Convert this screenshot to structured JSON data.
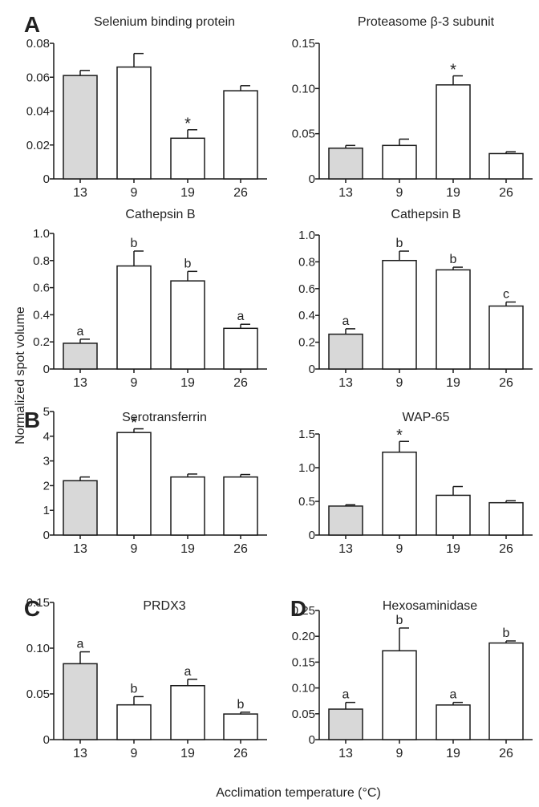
{
  "figure": {
    "ylabel": "Normalized spot volume",
    "xlabel": "Acclimation temperature (°C)"
  },
  "colors": {
    "control": "#d8d8d8",
    "bar": "#ffffff",
    "stroke": "#1a1a1a"
  },
  "chart_data": [
    {
      "type": "bar",
      "panel_letter": "A",
      "title": "Selenium binding protein",
      "categories": [
        "13",
        "9",
        "19",
        "26"
      ],
      "values": [
        0.061,
        0.066,
        0.024,
        0.052
      ],
      "errors": [
        0.003,
        0.008,
        0.005,
        0.003
      ],
      "sig": [
        "",
        "",
        "*",
        ""
      ],
      "ylim": [
        0,
        0.08
      ],
      "ticks": [
        0,
        0.02,
        0.04,
        0.06,
        0.08
      ],
      "tick_labels": [
        "0",
        "0.02",
        "0.04",
        "0.06",
        "0.08"
      ]
    },
    {
      "type": "bar",
      "panel_letter": "",
      "title": "Proteasome β-3 subunit",
      "categories": [
        "13",
        "9",
        "19",
        "26"
      ],
      "values": [
        0.034,
        0.037,
        0.104,
        0.028
      ],
      "errors": [
        0.003,
        0.007,
        0.01,
        0.002
      ],
      "sig": [
        "",
        "",
        "*",
        ""
      ],
      "ylim": [
        0,
        0.15
      ],
      "ticks": [
        0,
        0.05,
        0.1,
        0.15
      ],
      "tick_labels": [
        "0",
        "0.05",
        "0.10",
        "0.15"
      ]
    },
    {
      "type": "bar",
      "panel_letter": "",
      "title": "Cathepsin B",
      "categories": [
        "13",
        "9",
        "19",
        "26"
      ],
      "values": [
        0.19,
        0.76,
        0.65,
        0.3
      ],
      "errors": [
        0.03,
        0.11,
        0.07,
        0.03
      ],
      "sig": [
        "a",
        "b",
        "b",
        "a"
      ],
      "ylim": [
        0,
        1.0
      ],
      "ticks": [
        0,
        0.2,
        0.4,
        0.6,
        0.8,
        1.0
      ],
      "tick_labels": [
        "0",
        "0.2",
        "0.4",
        "0.6",
        "0.8",
        "1.0"
      ]
    },
    {
      "type": "bar",
      "panel_letter": "",
      "title": "Cathepsin B",
      "categories": [
        "13",
        "9",
        "19",
        "26"
      ],
      "values": [
        0.26,
        0.81,
        0.74,
        0.47
      ],
      "errors": [
        0.04,
        0.07,
        0.02,
        0.03
      ],
      "sig": [
        "a",
        "b",
        "b",
        "c"
      ],
      "ylim": [
        0,
        1.0
      ],
      "ticks": [
        0,
        0.2,
        0.4,
        0.6,
        0.8,
        1.0
      ],
      "tick_labels": [
        "0",
        "0.2",
        "0.4",
        "0.6",
        "0.8",
        "1.0"
      ]
    },
    {
      "type": "bar",
      "panel_letter": "B",
      "title": "Serotransferrin",
      "categories": [
        "13",
        "9",
        "19",
        "26"
      ],
      "values": [
        2.2,
        4.15,
        2.35,
        2.35
      ],
      "errors": [
        0.15,
        0.15,
        0.12,
        0.1
      ],
      "sig": [
        "",
        "*",
        "",
        ""
      ],
      "ylim": [
        0,
        5
      ],
      "ticks": [
        0,
        1,
        2,
        3,
        4,
        5
      ],
      "tick_labels": [
        "0",
        "1",
        "2",
        "3",
        "4",
        "5"
      ]
    },
    {
      "type": "bar",
      "panel_letter": "",
      "title": "WAP-65",
      "categories": [
        "13",
        "9",
        "19",
        "26"
      ],
      "values": [
        0.43,
        1.23,
        0.59,
        0.48
      ],
      "errors": [
        0.02,
        0.16,
        0.13,
        0.03
      ],
      "sig": [
        "",
        "*",
        "",
        ""
      ],
      "ylim": [
        0,
        1.5
      ],
      "ticks": [
        0,
        0.5,
        1.0,
        1.5
      ],
      "tick_labels": [
        "0",
        "0.5",
        "1.0",
        "1.5"
      ]
    },
    {
      "type": "bar",
      "panel_letter": "C",
      "title": "PRDX3",
      "categories": [
        "13",
        "9",
        "19",
        "26"
      ],
      "values": [
        0.083,
        0.038,
        0.059,
        0.028
      ],
      "errors": [
        0.013,
        0.009,
        0.007,
        0.002
      ],
      "sig": [
        "a",
        "b",
        "a",
        "b"
      ],
      "ylim": [
        0,
        0.15
      ],
      "ticks": [
        0,
        0.05,
        0.1,
        0.15
      ],
      "tick_labels": [
        "0",
        "0.05",
        "0.10",
        "0.15"
      ]
    },
    {
      "type": "bar",
      "panel_letter": "D",
      "title": "Hexosaminidase",
      "categories": [
        "13",
        "9",
        "19",
        "26"
      ],
      "values": [
        0.059,
        0.172,
        0.067,
        0.187
      ],
      "errors": [
        0.013,
        0.044,
        0.005,
        0.004
      ],
      "sig": [
        "a",
        "b",
        "a",
        "b"
      ],
      "ylim": [
        0,
        0.25
      ],
      "ticks": [
        0,
        0.05,
        0.1,
        0.15,
        0.2,
        0.25
      ],
      "tick_labels": [
        "0",
        "0.05",
        "0.10",
        "0.15",
        "0.20",
        "0.25"
      ]
    }
  ]
}
